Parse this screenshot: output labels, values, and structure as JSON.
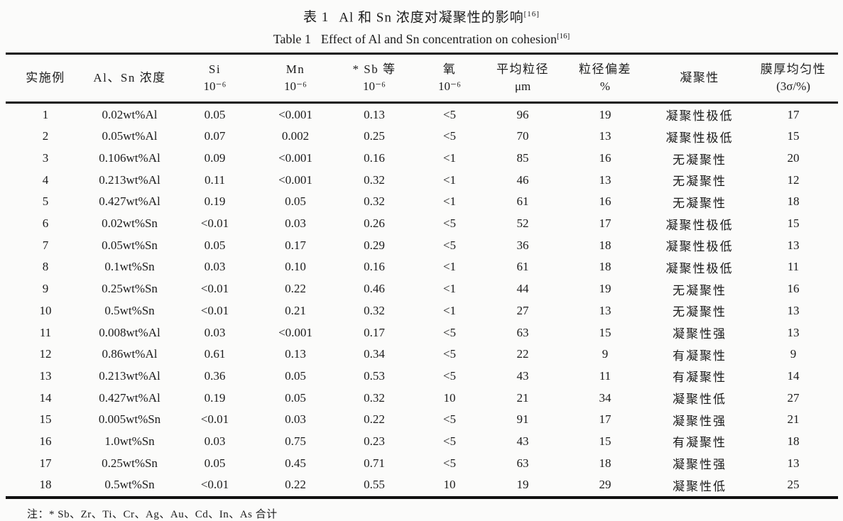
{
  "caption": {
    "cn_label": "表 1",
    "cn_text": "Al 和 Sn 浓度对凝聚性的影响",
    "en_label": "Table 1",
    "en_text": "Effect of Al and Sn concentration on cohesion",
    "ref": "[16]"
  },
  "table": {
    "columns": [
      {
        "name": "实施例",
        "unit": ""
      },
      {
        "name": "Al、Sn 浓度",
        "unit": ""
      },
      {
        "name": "Si",
        "unit": "10⁻⁶"
      },
      {
        "name": "Mn",
        "unit": "10⁻⁶"
      },
      {
        "name": "* Sb 等",
        "unit": "10⁻⁶"
      },
      {
        "name": "氧",
        "unit": "10⁻⁶"
      },
      {
        "name": "平均粒径",
        "unit": "μm"
      },
      {
        "name": "粒径偏差",
        "unit": "%"
      },
      {
        "name": "凝聚性",
        "unit": ""
      },
      {
        "name": "膜厚均匀性",
        "unit": "(3σ/%)"
      }
    ],
    "rows": [
      [
        "1",
        "0.02wt%Al",
        "0.05",
        "<0.001",
        "0.13",
        "<5",
        "96",
        "19",
        "凝聚性极低",
        "17"
      ],
      [
        "2",
        "0.05wt%Al",
        "0.07",
        "0.002",
        "0.25",
        "<5",
        "70",
        "13",
        "凝聚性极低",
        "15"
      ],
      [
        "3",
        "0.106wt%Al",
        "0.09",
        "<0.001",
        "0.16",
        "<1",
        "85",
        "16",
        "无凝聚性",
        "20"
      ],
      [
        "4",
        "0.213wt%Al",
        "0.11",
        "<0.001",
        "0.32",
        "<1",
        "46",
        "13",
        "无凝聚性",
        "12"
      ],
      [
        "5",
        "0.427wt%Al",
        "0.19",
        "0.05",
        "0.32",
        "<1",
        "61",
        "16",
        "无凝聚性",
        "18"
      ],
      [
        "6",
        "0.02wt%Sn",
        "<0.01",
        "0.03",
        "0.26",
        "<5",
        "52",
        "17",
        "凝聚性极低",
        "15"
      ],
      [
        "7",
        "0.05wt%Sn",
        "0.05",
        "0.17",
        "0.29",
        "<5",
        "36",
        "18",
        "凝聚性极低",
        "13"
      ],
      [
        "8",
        "0.1wt%Sn",
        "0.03",
        "0.10",
        "0.16",
        "<1",
        "61",
        "18",
        "凝聚性极低",
        "11"
      ],
      [
        "9",
        "0.25wt%Sn",
        "<0.01",
        "0.22",
        "0.46",
        "<1",
        "44",
        "19",
        "无凝聚性",
        "16"
      ],
      [
        "10",
        "0.5wt%Sn",
        "<0.01",
        "0.21",
        "0.32",
        "<1",
        "27",
        "13",
        "无凝聚性",
        "13"
      ],
      [
        "11",
        "0.008wt%Al",
        "0.03",
        "<0.001",
        "0.17",
        "<5",
        "63",
        "15",
        "凝聚性强",
        "13"
      ],
      [
        "12",
        "0.86wt%Al",
        "0.61",
        "0.13",
        "0.34",
        "<5",
        "22",
        "9",
        "有凝聚性",
        "9"
      ],
      [
        "13",
        "0.213wt%Al",
        "0.36",
        "0.05",
        "0.53",
        "<5",
        "43",
        "11",
        "有凝聚性",
        "14"
      ],
      [
        "14",
        "0.427wt%Al",
        "0.19",
        "0.05",
        "0.32",
        "10",
        "21",
        "34",
        "凝聚性低",
        "27"
      ],
      [
        "15",
        "0.005wt%Sn",
        "<0.01",
        "0.03",
        "0.22",
        "<5",
        "91",
        "17",
        "凝聚性强",
        "21"
      ],
      [
        "16",
        "1.0wt%Sn",
        "0.03",
        "0.75",
        "0.23",
        "<5",
        "43",
        "15",
        "有凝聚性",
        "18"
      ],
      [
        "17",
        "0.25wt%Sn",
        "0.05",
        "0.45",
        "0.71",
        "<5",
        "63",
        "18",
        "凝聚性强",
        "13"
      ],
      [
        "18",
        "0.5wt%Sn",
        "<0.01",
        "0.22",
        "0.55",
        "10",
        "19",
        "29",
        "凝聚性低",
        "25"
      ]
    ]
  },
  "footnote": "注：* Sb、Zr、Ti、Cr、Ag、Au、Cd、In、As 合计",
  "colors": {
    "text": "#1b1b1b",
    "rule": "#111111",
    "background": "#fbfbfa"
  }
}
